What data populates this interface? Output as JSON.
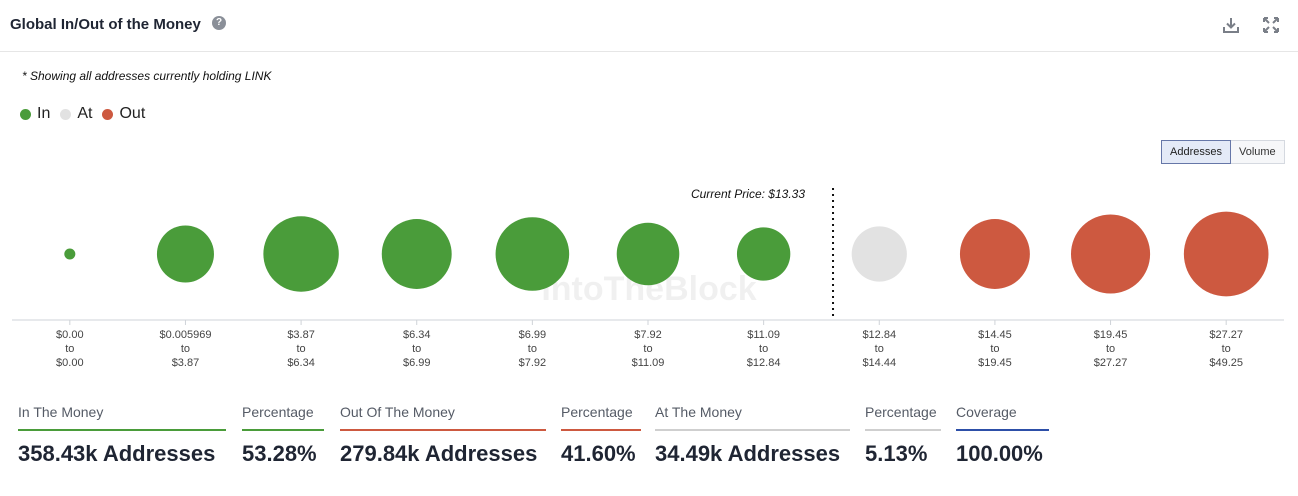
{
  "header": {
    "title": "Global In/Out of the Money",
    "help_glyph": "?",
    "icons": [
      "download-icon",
      "expand-icon"
    ]
  },
  "note": "* Showing all addresses currently holding LINK",
  "legend": [
    {
      "label": "In",
      "color": "#4a9c3a"
    },
    {
      "label": "At",
      "color": "#e2e2e2"
    },
    {
      "label": "Out",
      "color": "#cd5940"
    }
  ],
  "toggle": {
    "options": [
      "Addresses",
      "Volume"
    ],
    "selected": "Addresses"
  },
  "watermark": "IntoTheBlock",
  "chart_data": {
    "type": "scatter",
    "description_kind": "bubble",
    "current_price_label": "Current Price: $13.33",
    "categories": [
      {
        "from": "$0.00",
        "to": "$0.00",
        "status": "In"
      },
      {
        "from": "$0.005969",
        "to": "$3.87",
        "status": "In"
      },
      {
        "from": "$3.87",
        "to": "$6.34",
        "status": "In"
      },
      {
        "from": "$6.34",
        "to": "$6.99",
        "status": "In"
      },
      {
        "from": "$6.99",
        "to": "$7.92",
        "status": "In"
      },
      {
        "from": "$7.92",
        "to": "$11.09",
        "status": "In"
      },
      {
        "from": "$11.09",
        "to": "$12.84",
        "status": "In"
      },
      {
        "from": "$12.84",
        "to": "$14.44",
        "status": "At"
      },
      {
        "from": "$14.45",
        "to": "$19.45",
        "status": "Out"
      },
      {
        "from": "$19.45",
        "to": "$27.27",
        "status": "Out"
      },
      {
        "from": "$27.27",
        "to": "$49.25",
        "status": "Out"
      }
    ],
    "relative_size": [
      0.12,
      0.62,
      0.82,
      0.76,
      0.8,
      0.68,
      0.58,
      0.6,
      0.76,
      0.86,
      0.92
    ],
    "colors": {
      "In": "#4a9c3a",
      "At": "#e2e2e2",
      "Out": "#cd5940"
    }
  },
  "stats": [
    {
      "label": "In The Money",
      "value": "358.43k Addresses",
      "bar": "#4a9c3a"
    },
    {
      "label": "Percentage",
      "value": "53.28%",
      "bar": "#4a9c3a"
    },
    {
      "label": "Out Of The Money",
      "value": "279.84k Addresses",
      "bar": "#cd5940"
    },
    {
      "label": "Percentage",
      "value": "41.60%",
      "bar": "#cd5940"
    },
    {
      "label": "At The Money",
      "value": "34.49k Addresses",
      "bar": "#cfcfcf"
    },
    {
      "label": "Percentage",
      "value": "5.13%",
      "bar": "#cfcfcf"
    },
    {
      "label": "Coverage",
      "value": "100.00%",
      "bar": "#2d4fa8"
    }
  ]
}
